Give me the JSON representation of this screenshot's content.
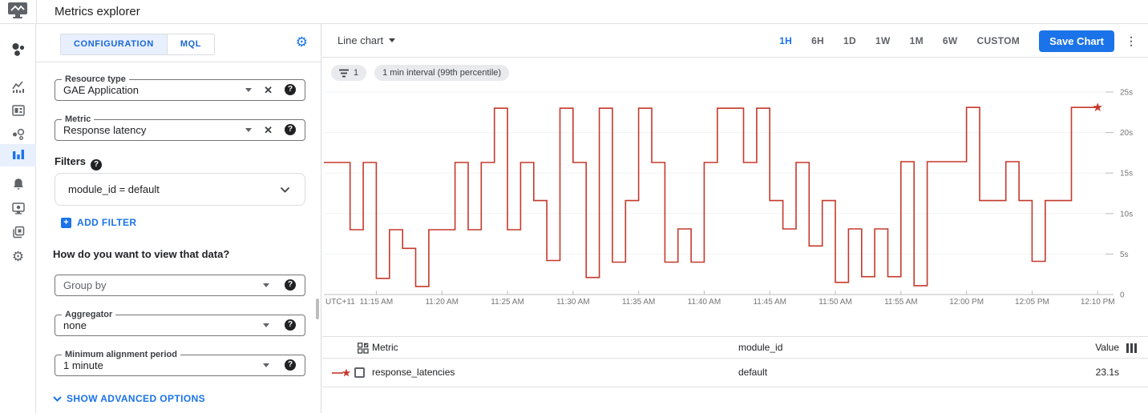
{
  "header": {
    "title": "Metrics explorer"
  },
  "nav": {
    "items": [
      {
        "name": "overview",
        "active": false
      },
      {
        "name": "metrics",
        "active": false
      },
      {
        "name": "dashboards",
        "active": false
      },
      {
        "name": "services",
        "active": false
      },
      {
        "name": "metrics-explorer",
        "active": true
      },
      {
        "name": "alerting",
        "active": false
      },
      {
        "name": "uptime-checks",
        "active": false
      },
      {
        "name": "groups",
        "active": false
      },
      {
        "name": "settings",
        "active": false
      }
    ]
  },
  "config_panel": {
    "tabs": [
      {
        "label": "CONFIGURATION",
        "active": true
      },
      {
        "label": "MQL",
        "active": false
      }
    ],
    "resource_type": {
      "label": "Resource type",
      "value": "GAE Application"
    },
    "metric": {
      "label": "Metric",
      "value": "Response latency"
    },
    "filters_heading": "Filters",
    "filter_chip": "module_id = default",
    "add_filter_label": "ADD FILTER",
    "view_heading": "How do you want to view that data?",
    "group_by_placeholder": "Group by",
    "aggregator": {
      "label": "Aggregator",
      "value": "none"
    },
    "alignment": {
      "label": "Minimum alignment period",
      "value": "1 minute"
    },
    "advanced_label": "SHOW ADVANCED OPTIONS"
  },
  "toolbar": {
    "chart_type": "Line chart",
    "time_ranges": [
      "1H",
      "6H",
      "1D",
      "1W",
      "1M",
      "6W",
      "CUSTOM"
    ],
    "active_range": "1H",
    "save_label": "Save Chart"
  },
  "chips": {
    "filter_count": "1",
    "interval_label": "1 min interval (99th percentile)"
  },
  "chart_data": {
    "type": "line",
    "style": "step",
    "title": "",
    "grid": true,
    "legend_position": "table-below",
    "series": [
      {
        "name": "response_latencies",
        "color": "#c5392b",
        "unit": "s",
        "interval_minutes": 1,
        "start_time": "11:11 AM",
        "end_time": "12:10 PM",
        "values": [
          16.3,
          16.3,
          8,
          16.3,
          2,
          8,
          5.7,
          1,
          8,
          8,
          16.3,
          8,
          16.3,
          23,
          8,
          16.3,
          11.6,
          4.2,
          23,
          16.3,
          2.1,
          23,
          4,
          11.6,
          23,
          16.3,
          4,
          8.1,
          4,
          16.3,
          23,
          23,
          16.3,
          23,
          11.6,
          8.1,
          16.3,
          6,
          11.6,
          1.5,
          8.1,
          2.2,
          8.1,
          2.2,
          16.4,
          1.1,
          16.4,
          16.4,
          16.4,
          23.1,
          11.6,
          11.6,
          16.4,
          11.6,
          4.1,
          11.6,
          11.6,
          23.1,
          23.1,
          23.1
        ]
      }
    ],
    "x_axis": {
      "prefix": "UTC+11",
      "tick_labels": [
        "11:15 AM",
        "11:20 AM",
        "11:25 AM",
        "11:30 AM",
        "11:35 AM",
        "11:40 AM",
        "11:45 AM",
        "11:50 AM",
        "11:55 AM",
        "12:00 PM",
        "12:05 PM",
        "12:10 PM"
      ],
      "tick_minutes": [
        4,
        9,
        14,
        19,
        24,
        29,
        34,
        39,
        44,
        49,
        54,
        59
      ]
    },
    "y_axis": {
      "tick_labels": [
        "25s",
        "20s",
        "15s",
        "10s",
        "5s",
        "0"
      ],
      "tick_values": [
        25,
        20,
        15,
        10,
        5,
        0
      ],
      "min": 0,
      "max": 25
    },
    "current_value": "23.1s"
  },
  "table": {
    "metric_header": "Metric",
    "module_header": "module_id",
    "value_header": "Value",
    "rows": [
      {
        "metric": "response_latencies",
        "module_id": "default",
        "value": "23.1s"
      }
    ]
  },
  "colors": {
    "accent_blue": "#1a73e8",
    "tab_active_bg": "#e8f0fe",
    "series_red": "#c5392b"
  }
}
